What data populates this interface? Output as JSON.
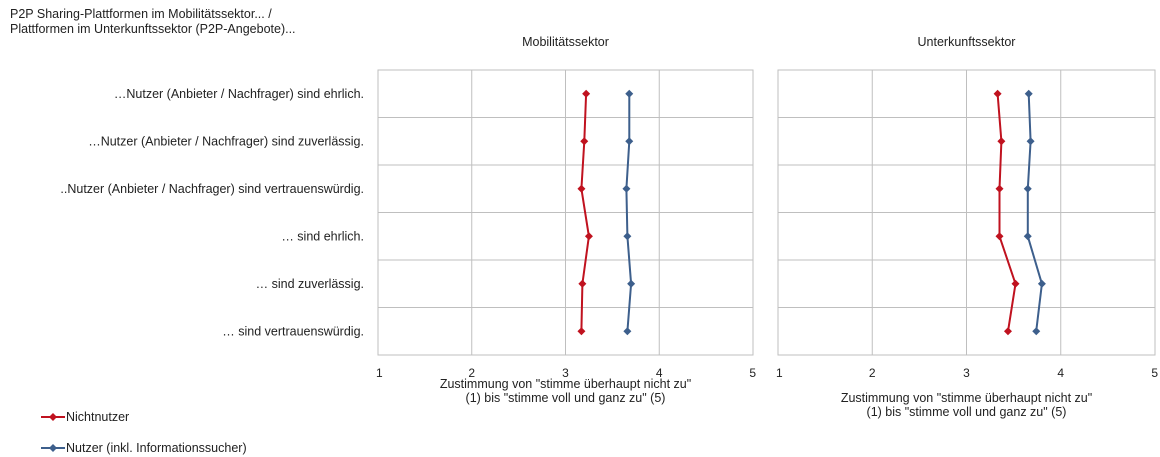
{
  "header": {
    "line1": "P2P Sharing-Plattformen im Mobilitätssektor... /",
    "line2": "Plattformen im Unterkunftssektor (P2P-Angebote)..."
  },
  "legend": [
    {
      "name": "Nichtnutzer",
      "color": "#c0121f"
    },
    {
      "name": "Nutzer (inkl. Informationssucher)",
      "color": "#3d5f8c"
    }
  ],
  "chart_data": [
    {
      "type": "line",
      "title": "Mobilitätssektor",
      "xlabel": "Zustimmung von \"stimme überhaupt nicht zu\" (1) bis \"stimme voll und ganz zu\" (5)",
      "xlim": [
        1,
        5
      ],
      "xticks": [
        "1",
        "2",
        "3",
        "4",
        "5"
      ],
      "categories": [
        "…Nutzer (Anbieter / Nachfrager) sind ehrlich.",
        "…Nutzer (Anbieter / Nachfrager) sind zuverlässig.",
        "..Nutzer (Anbieter / Nachfrager) sind vertrauenswürdig.",
        "… sind ehrlich.",
        "… sind zuverlässig.",
        "… sind vertrauenswürdig."
      ],
      "series": [
        {
          "name": "Nichtnutzer",
          "color": "#c0121f",
          "values": [
            3.22,
            3.2,
            3.17,
            3.25,
            3.18,
            3.17
          ]
        },
        {
          "name": "Nutzer (inkl. Informationssucher)",
          "color": "#3d5f8c",
          "values": [
            3.68,
            3.68,
            3.65,
            3.66,
            3.7,
            3.66
          ]
        }
      ],
      "grid": true,
      "legend_position": "bottom-left"
    },
    {
      "type": "line",
      "title": "Unterkunftssektor",
      "xlabel": "Zustimmung von \"stimme überhaupt nicht zu\" (1) bis \"stimme voll und ganz zu\" (5)",
      "xlim": [
        1,
        5
      ],
      "xticks": [
        "1",
        "2",
        "3",
        "4",
        "5"
      ],
      "categories": [
        "…Nutzer (Anbieter / Nachfrager) sind ehrlich.",
        "…Nutzer (Anbieter / Nachfrager) sind zuverlässig.",
        "..Nutzer (Anbieter / Nachfrager) sind vertrauenswürdig.",
        "… sind ehrlich.",
        "… sind zuverlässig.",
        "… sind vertrauenswürdig."
      ],
      "series": [
        {
          "name": "Nichtnutzer",
          "color": "#c0121f",
          "values": [
            3.33,
            3.37,
            3.35,
            3.35,
            3.52,
            3.44
          ]
        },
        {
          "name": "Nutzer (inkl. Informationssucher)",
          "color": "#3d5f8c",
          "values": [
            3.66,
            3.68,
            3.65,
            3.65,
            3.8,
            3.74
          ]
        }
      ],
      "grid": true,
      "legend_position": "bottom-left"
    }
  ]
}
